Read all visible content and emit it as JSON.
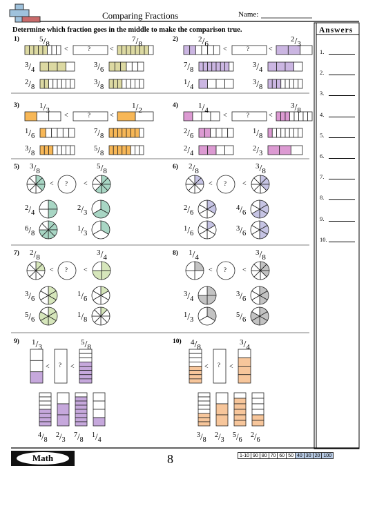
{
  "header": {
    "title": "Comparing Fractions",
    "name_label": "Name:"
  },
  "instructions": "Determine which fraction goes in the middle to make the comparison true.",
  "answers": {
    "title": "Answers",
    "items": [
      "1.",
      "2.",
      "3.",
      "4.",
      "5.",
      "6.",
      "7.",
      "8.",
      "9.",
      "10."
    ]
  },
  "colors": {
    "yellow": "#dcd9a2",
    "purple": "#cbb6e2",
    "orange": "#f7b757",
    "pink": "#dc9ad2",
    "green": "#a8d6c4",
    "lavender": "#c6c4e4",
    "lime": "#d6e6bb",
    "gray": "#c3c3c3",
    "violet": "#c6a8dc",
    "peach": "#f7c69b"
  },
  "problems": [
    {
      "num": "1)",
      "kind": "bar",
      "color": "yellow",
      "left": "5/8",
      "right": "7/8",
      "options": [
        "3/4",
        "3/6",
        "2/8",
        "3/8"
      ]
    },
    {
      "num": "2)",
      "kind": "bar",
      "color": "purple",
      "left": "2/6",
      "right": "2/3",
      "options": [
        "7/8",
        "3/4",
        "1/4",
        "3/8"
      ]
    },
    {
      "num": "3)",
      "kind": "bar",
      "color": "orange",
      "left": "1/3",
      "right": "1/2",
      "options": [
        "1/6",
        "7/8",
        "3/8",
        "5/8"
      ]
    },
    {
      "num": "4)",
      "kind": "bar",
      "color": "pink",
      "left": "1/4",
      "right": "3/8",
      "options": [
        "2/6",
        "1/8",
        "2/4",
        "2/3"
      ]
    },
    {
      "num": "5)",
      "kind": "pie",
      "color": "green",
      "left": "3/8",
      "right": "5/8",
      "options": [
        "2/4",
        "2/3",
        "6/8",
        "1/3"
      ]
    },
    {
      "num": "6)",
      "kind": "pie",
      "color": "lavender",
      "left": "2/8",
      "right": "3/8",
      "options": [
        "2/6",
        "4/6",
        "1/6",
        "3/6"
      ]
    },
    {
      "num": "7)",
      "kind": "pie",
      "color": "lime",
      "left": "2/8",
      "right": "3/4",
      "options": [
        "3/6",
        "1/6",
        "5/6",
        "1/8"
      ]
    },
    {
      "num": "8)",
      "kind": "pie",
      "color": "gray",
      "left": "1/4",
      "right": "3/8",
      "options": [
        "3/4",
        "3/6",
        "1/3",
        "5/6"
      ]
    },
    {
      "num": "9)",
      "kind": "vbar",
      "color": "violet",
      "left": "1/3",
      "right": "5/8",
      "options": [
        "4/8",
        "2/3",
        "7/8",
        "1/4"
      ]
    },
    {
      "num": "10)",
      "kind": "vbar",
      "color": "peach",
      "left": "4/8",
      "right": "3/4",
      "options": [
        "3/8",
        "2/3",
        "5/6",
        "2/6"
      ]
    }
  ],
  "symbols": {
    "less": "<",
    "unknown": "?"
  },
  "footer": {
    "logo": "Math",
    "page": "8",
    "scores": [
      "1-10",
      "90",
      "80",
      "70",
      "60",
      "50",
      "40",
      "30",
      "20",
      "100"
    ]
  }
}
